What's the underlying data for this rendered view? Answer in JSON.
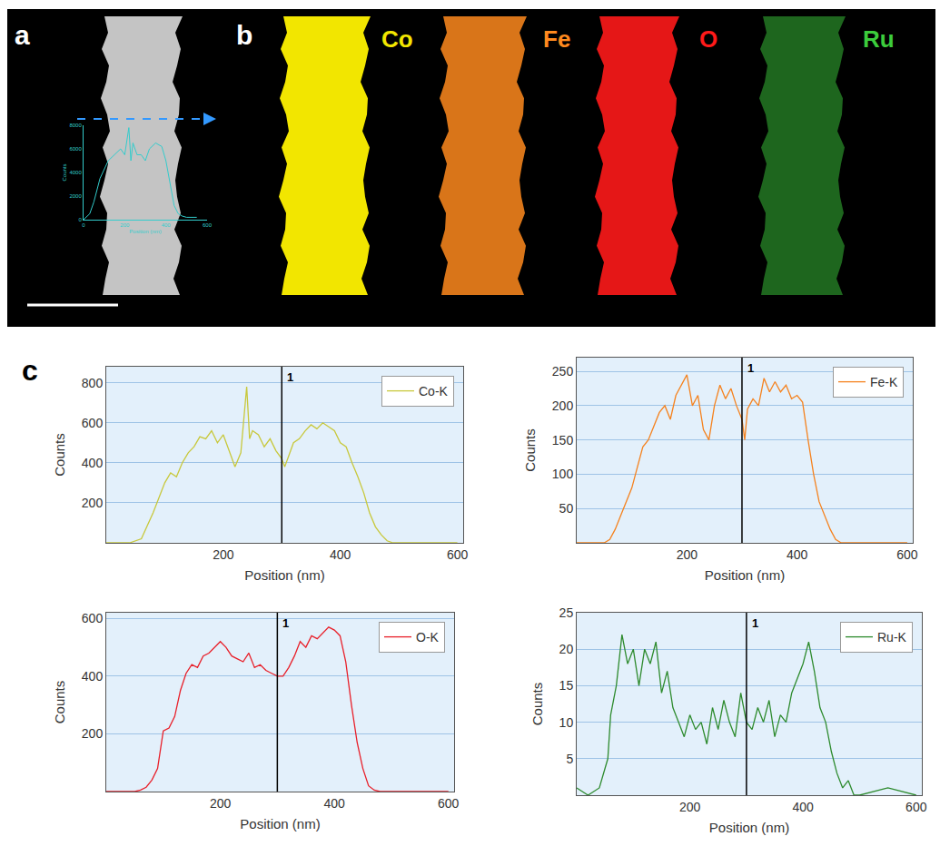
{
  "panels": {
    "a": {
      "label": "a"
    },
    "b": {
      "label": "b",
      "maps": [
        {
          "element": "Co",
          "color": "#f2e600"
        },
        {
          "element": "Fe",
          "color": "#ff8a1e"
        },
        {
          "element": "O",
          "color": "#ff1a1a"
        },
        {
          "element": "Ru",
          "color": "#3ccc3c"
        }
      ]
    },
    "c": {
      "label": "c"
    }
  },
  "chart_data": [
    {
      "type": "line",
      "xlabel": "Position (nm)",
      "ylabel": "Counts",
      "color": "#33cccc",
      "x": [
        0,
        30,
        50,
        80,
        120,
        150,
        180,
        200,
        220,
        230,
        240,
        260,
        280,
        300,
        320,
        350,
        380,
        400,
        420,
        440,
        460,
        480,
        500,
        550
      ],
      "values": [
        0,
        500,
        1500,
        3500,
        5000,
        5500,
        6000,
        5500,
        7800,
        5000,
        6500,
        5500,
        5500,
        5000,
        6000,
        6500,
        6200,
        5000,
        3000,
        1200,
        500,
        300,
        200,
        200
      ],
      "xlim": [
        0,
        600
      ],
      "xticks": [
        0,
        200,
        400,
        600
      ],
      "ylim": [
        0,
        8000
      ],
      "yticks": [
        0,
        2000,
        4000,
        6000,
        8000
      ],
      "grid": false
    },
    {
      "type": "line",
      "xlabel": "Position (nm)",
      "ylabel": "Counts",
      "grid": true,
      "legend": "top right",
      "x": [
        0,
        40,
        60,
        80,
        100,
        110,
        120,
        130,
        140,
        150,
        160,
        170,
        180,
        190,
        200,
        210,
        220,
        230,
        240,
        245,
        250,
        260,
        270,
        280,
        290,
        300,
        305,
        310,
        320,
        330,
        340,
        350,
        360,
        370,
        380,
        390,
        400,
        410,
        420,
        430,
        440,
        450,
        460,
        470,
        480,
        490,
        500,
        550,
        600
      ],
      "series": [
        {
          "name": "Co-K",
          "color": "#c8c83c",
          "values": [
            0,
            0,
            20,
            150,
            300,
            350,
            330,
            400,
            450,
            480,
            530,
            520,
            560,
            500,
            540,
            460,
            380,
            450,
            780,
            520,
            560,
            540,
            480,
            520,
            460,
            420,
            380,
            420,
            500,
            520,
            560,
            590,
            570,
            600,
            580,
            560,
            500,
            480,
            400,
            330,
            250,
            150,
            80,
            40,
            10,
            0,
            0,
            0,
            0
          ]
        }
      ],
      "xlim": [
        0,
        610
      ],
      "xticks": [
        200,
        400,
        600
      ],
      "ylim": [
        0,
        880
      ],
      "yticks": [
        200,
        400,
        600,
        800
      ],
      "annotations": [
        {
          "x": 300,
          "text": "1"
        }
      ]
    },
    {
      "type": "line",
      "xlabel": "Position (nm)",
      "ylabel": "Counts",
      "grid": true,
      "legend": "top right",
      "x": [
        0,
        50,
        60,
        70,
        80,
        90,
        100,
        110,
        120,
        130,
        140,
        150,
        160,
        170,
        180,
        190,
        200,
        210,
        220,
        230,
        240,
        250,
        260,
        270,
        280,
        290,
        300,
        305,
        310,
        320,
        330,
        340,
        350,
        360,
        370,
        380,
        390,
        400,
        410,
        420,
        430,
        440,
        450,
        460,
        470,
        480,
        500,
        600
      ],
      "series": [
        {
          "name": "Fe-K",
          "color": "#f5821e",
          "values": [
            0,
            0,
            5,
            20,
            40,
            60,
            80,
            110,
            140,
            150,
            170,
            190,
            200,
            180,
            215,
            230,
            245,
            200,
            215,
            165,
            150,
            200,
            230,
            210,
            225,
            200,
            180,
            150,
            195,
            210,
            200,
            240,
            220,
            235,
            220,
            230,
            210,
            215,
            205,
            150,
            100,
            60,
            40,
            20,
            5,
            0,
            0,
            0
          ]
        }
      ],
      "xlim": [
        0,
        610
      ],
      "xticks": [
        200,
        400,
        600
      ],
      "ylim": [
        0,
        270
      ],
      "yticks": [
        50,
        100,
        150,
        200,
        250
      ],
      "annotations": [
        {
          "x": 300,
          "text": "1"
        }
      ]
    },
    {
      "type": "line",
      "xlabel": "Position (nm)",
      "ylabel": "Counts",
      "grid": true,
      "legend": "top right",
      "x": [
        0,
        50,
        60,
        70,
        80,
        90,
        100,
        110,
        120,
        130,
        140,
        150,
        160,
        170,
        180,
        190,
        200,
        210,
        220,
        230,
        240,
        250,
        260,
        270,
        280,
        290,
        300,
        310,
        320,
        330,
        340,
        350,
        360,
        370,
        380,
        390,
        400,
        410,
        420,
        430,
        440,
        450,
        460,
        470,
        480,
        600
      ],
      "series": [
        {
          "name": "O-K",
          "color": "#e8202a",
          "values": [
            0,
            0,
            5,
            15,
            40,
            80,
            210,
            220,
            260,
            350,
            410,
            440,
            430,
            470,
            480,
            500,
            520,
            500,
            470,
            460,
            450,
            480,
            430,
            440,
            420,
            410,
            400,
            400,
            430,
            470,
            520,
            500,
            540,
            530,
            550,
            570,
            560,
            540,
            450,
            300,
            170,
            80,
            20,
            5,
            0,
            0
          ]
        }
      ],
      "xlim": [
        0,
        610
      ],
      "xticks": [
        200,
        400,
        600
      ],
      "ylim": [
        0,
        620
      ],
      "yticks": [
        200,
        400,
        600
      ],
      "annotations": [
        {
          "x": 300,
          "text": "1"
        }
      ]
    },
    {
      "type": "line",
      "xlabel": "Position (nm)",
      "ylabel": "Counts",
      "grid": true,
      "legend": "top right",
      "x": [
        0,
        20,
        40,
        55,
        60,
        70,
        80,
        90,
        100,
        110,
        120,
        130,
        140,
        150,
        160,
        170,
        180,
        190,
        200,
        210,
        220,
        230,
        240,
        250,
        260,
        270,
        280,
        290,
        300,
        310,
        320,
        330,
        340,
        350,
        360,
        370,
        380,
        390,
        400,
        410,
        420,
        430,
        440,
        450,
        460,
        470,
        480,
        490,
        500,
        550,
        600
      ],
      "series": [
        {
          "name": "Ru-K",
          "color": "#2e8b2e",
          "values": [
            1,
            0,
            1,
            5,
            11,
            15,
            22,
            18,
            20,
            15,
            20,
            18,
            21,
            14,
            17,
            12,
            10,
            8,
            11,
            9,
            10,
            7,
            12,
            9,
            13,
            10,
            8,
            14,
            10,
            9,
            12,
            10,
            13,
            8,
            11,
            10,
            14,
            16,
            18,
            21,
            17,
            12,
            10,
            6,
            3,
            1,
            2,
            0,
            0,
            1,
            0
          ]
        }
      ],
      "xlim": [
        0,
        610
      ],
      "xticks": [
        200,
        400,
        600
      ],
      "ylim": [
        0,
        25
      ],
      "yticks": [
        5,
        10,
        15,
        20,
        25
      ],
      "annotations": [
        {
          "x": 300,
          "text": "1"
        }
      ]
    }
  ]
}
